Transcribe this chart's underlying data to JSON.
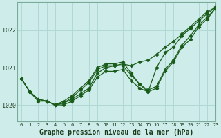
{
  "title": "",
  "xlabel": "Graphe pression niveau de la mer (hPa)",
  "ylabel": "",
  "bg_color": "#ceecea",
  "grid_color": "#b0d8d4",
  "line_color": "#1a5c1a",
  "xlim": [
    -0.5,
    23
  ],
  "ylim": [
    1019.55,
    1022.75
  ],
  "yticks": [
    1020,
    1021,
    1022
  ],
  "xticks": [
    0,
    1,
    2,
    3,
    4,
    5,
    6,
    7,
    8,
    9,
    10,
    11,
    12,
    13,
    14,
    15,
    16,
    17,
    18,
    19,
    20,
    21,
    22,
    23
  ],
  "series": [
    [
      1020.7,
      1020.35,
      1020.1,
      1020.1,
      1020.0,
      1020.05,
      1020.15,
      1020.3,
      1020.45,
      1020.85,
      1021.0,
      1021.05,
      1021.05,
      1020.8,
      1020.55,
      1020.4,
      1020.5,
      1020.95,
      1021.2,
      1021.6,
      1021.85,
      1022.15,
      1022.35,
      1022.6
    ],
    [
      1020.7,
      1020.35,
      1020.15,
      1020.1,
      1020.0,
      1020.0,
      1020.1,
      1020.25,
      1020.4,
      1020.75,
      1020.9,
      1020.9,
      1020.95,
      1020.65,
      1020.45,
      1020.35,
      1020.45,
      1020.9,
      1021.15,
      1021.55,
      1021.75,
      1022.1,
      1022.3,
      1022.6
    ],
    [
      1020.7,
      1020.35,
      1020.15,
      1020.1,
      1020.0,
      1020.1,
      1020.25,
      1020.45,
      1020.65,
      1021.0,
      1021.1,
      1021.1,
      1021.15,
      1020.85,
      1020.55,
      1020.35,
      1021.0,
      1021.4,
      1021.55,
      1021.85,
      1022.05,
      1022.25,
      1022.45,
      1022.62
    ],
    [
      1020.7,
      1020.35,
      1020.15,
      1020.1,
      1020.0,
      1020.05,
      1020.2,
      1020.4,
      1020.6,
      1020.95,
      1021.05,
      1021.05,
      1021.1,
      1021.05,
      1021.15,
      1021.2,
      1021.35,
      1021.55,
      1021.7,
      1021.9,
      1022.1,
      1022.3,
      1022.5,
      1022.62
    ]
  ],
  "marker": "D",
  "markersize": 2.2,
  "linewidth": 0.9
}
